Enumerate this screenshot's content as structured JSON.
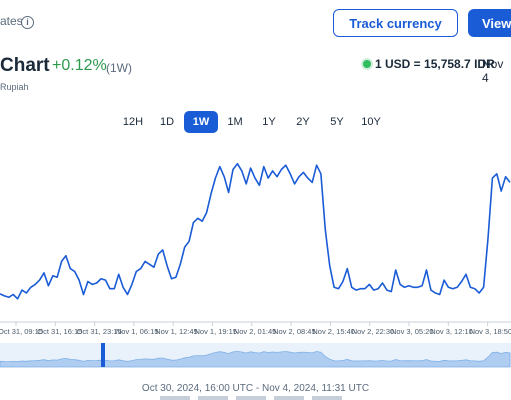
{
  "header": {
    "topbar_note": "ates",
    "track_button": "Track currency",
    "view_button": "View"
  },
  "title_row": {
    "title": "Chart",
    "change": "+0.12%",
    "range": "(1W)",
    "rate": "1 USD = 15,758.7 IDR",
    "rate_date": "Nov 4",
    "subtitle": "Rupiah"
  },
  "periods": [
    "12H",
    "1D",
    "1W",
    "1M",
    "1Y",
    "2Y",
    "5Y",
    "10Y"
  ],
  "selected_period": "1W",
  "footer": {
    "date_range": "Oct 30, 2024, 16:00 UTC - Nov 4, 2024, 11:31 UTC"
  },
  "colors": {
    "accent": "#1a5bd6",
    "positive": "#2d9a4b",
    "live": "#2fbd5f",
    "line": "#1a5bd6",
    "nav_fill": "#aecdf0"
  },
  "chart_data": {
    "type": "line",
    "x_tick_labels": [
      "Oct 31, 09:15",
      "Oct 31, 16:15",
      "Oct 31, 23:15",
      "Nov 1, 06:15",
      "Nov 1, 12:45",
      "Nov 1, 19:15",
      "Nov 2, 01:45",
      "Nov 2, 08:45",
      "Nov 2, 15:40",
      "Nov 2, 22:30",
      "Nov 3, 05:20",
      "Nov 3, 12:10",
      "Nov 3, 18:50"
    ],
    "series": [
      {
        "values": [
          15.4,
          14,
          13,
          15,
          12,
          18,
          16,
          20,
          22,
          25,
          30,
          21,
          28,
          27,
          38,
          42,
          33,
          31,
          25,
          15,
          24,
          22,
          23,
          26,
          25,
          19,
          19,
          29,
          20,
          15,
          22,
          31,
          33,
          38,
          36,
          34,
          43,
          46,
          35,
          26,
          27,
          36,
          48,
          52,
          65,
          68,
          66,
          72,
          85,
          96,
          104,
          97,
          86,
          102,
          106,
          101,
          92,
          103,
          96,
          91,
          104,
          96,
          101,
          97,
          102,
          105,
          99,
          92,
          97,
          100,
          96,
          93,
          105,
          99,
          60,
          35,
          20,
          19,
          24,
          33,
          20,
          18,
          19,
          19,
          22,
          18,
          19,
          23,
          18,
          17,
          32,
          22,
          20,
          21,
          20,
          20,
          21,
          32,
          18,
          16,
          15,
          25,
          20,
          19,
          20,
          24,
          29,
          20,
          19,
          16,
          20,
          54,
          96,
          99,
          87,
          97,
          93
        ]
      }
    ],
    "grid": false,
    "legend": "none"
  }
}
